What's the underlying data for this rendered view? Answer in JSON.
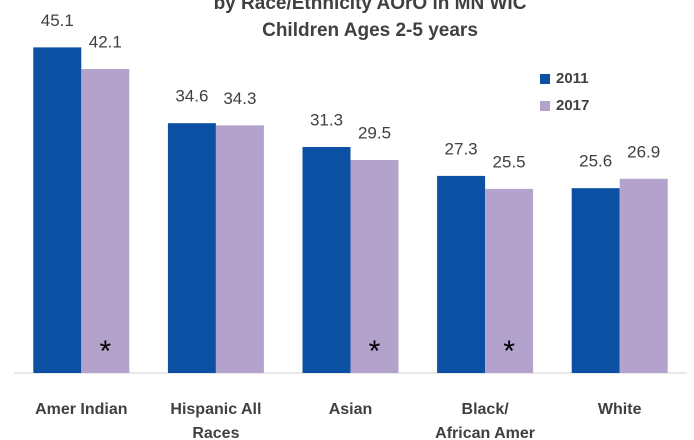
{
  "chart_data": {
    "type": "bar",
    "title": "by Race/Ethnicity AOrO in MN WIC",
    "subtitle": "Children Ages 2-5 years",
    "categories": [
      [
        "Amer Indian"
      ],
      [
        "Hispanic All",
        "Races"
      ],
      [
        "Asian"
      ],
      [
        "Black/",
        "African Amer"
      ],
      [
        "White"
      ]
    ],
    "series": [
      {
        "name": "2011",
        "color": "#0b50a2",
        "values": [
          45.1,
          34.6,
          31.3,
          27.3,
          25.6
        ]
      },
      {
        "name": "2017",
        "color": "#b3a2cb",
        "values": [
          42.1,
          34.3,
          29.5,
          25.5,
          26.9
        ],
        "markers": [
          "*",
          null,
          "*",
          "*",
          null
        ]
      }
    ],
    "ylim": [
      0,
      50
    ],
    "legend": "right"
  }
}
